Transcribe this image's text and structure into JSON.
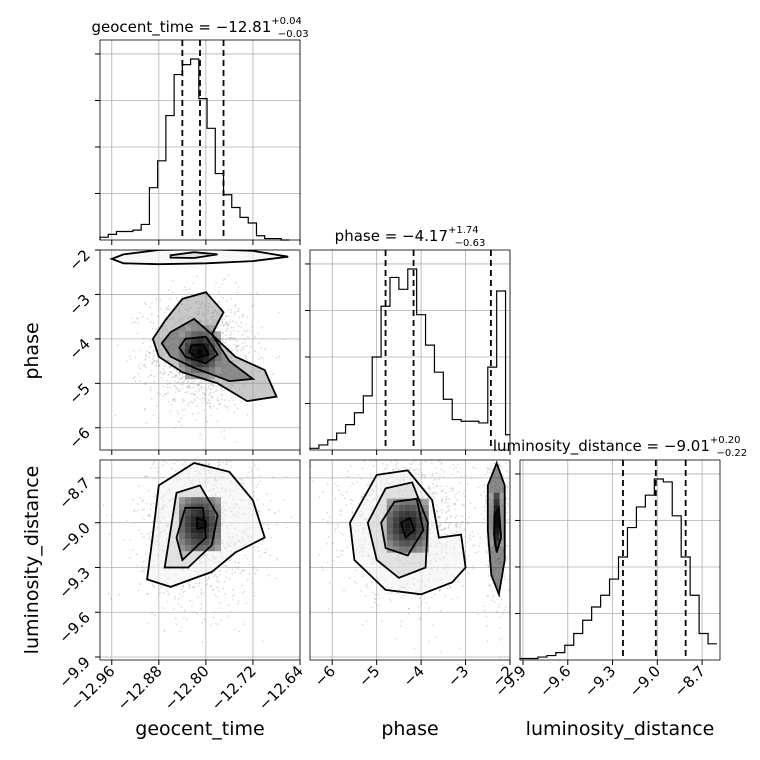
{
  "chart_data": {
    "type": "corner",
    "parameters": [
      "geocent_time",
      "phase",
      "luminosity_distance"
    ],
    "titles": [
      {
        "name": "geocent_time",
        "median": "−12.81",
        "plus": "+0.04",
        "minus": "−0.03"
      },
      {
        "name": "phase",
        "median": "−4.17",
        "plus": "+1.74",
        "minus": "−0.63"
      },
      {
        "name": "luminosity_distance",
        "median": "−9.01",
        "plus": "+0.20",
        "minus": "−0.22"
      }
    ],
    "axes": {
      "geocent_time": {
        "range": [
          -12.98,
          -12.64
        ],
        "ticks": [
          -12.96,
          -12.88,
          -12.8,
          -12.72,
          -12.64
        ],
        "tick_labels": [
          "−12.96",
          "−12.88",
          "−12.80",
          "−12.72",
          "−12.64"
        ]
      },
      "phase": {
        "range": [
          -6.5,
          -2.0
        ],
        "ticks": [
          -6,
          -5,
          -4,
          -3,
          -2
        ],
        "tick_labels": [
          "−6",
          "−5",
          "−4",
          "−3",
          "−2"
        ]
      },
      "luminosity_distance": {
        "range": [
          -9.92,
          -8.58
        ],
        "ticks": [
          -9.9,
          -9.6,
          -9.3,
          -9.0,
          -8.7
        ],
        "tick_labels": [
          "−9.9",
          "−9.6",
          "−9.3",
          "−9.0",
          "−8.7"
        ]
      }
    },
    "quantiles": {
      "geocent_time": [
        -12.84,
        -12.81,
        -12.77
      ],
      "phase": [
        -4.8,
        -4.17,
        -2.43
      ],
      "luminosity_distance": [
        -9.23,
        -9.01,
        -8.81
      ]
    },
    "histograms": {
      "geocent_time": {
        "edges": [
          -12.98,
          -12.966,
          -12.952,
          -12.938,
          -12.924,
          -12.91,
          -12.896,
          -12.882,
          -12.868,
          -12.854,
          -12.84,
          -12.826,
          -12.812,
          -12.798,
          -12.784,
          -12.77,
          -12.756,
          -12.742,
          -12.728,
          -12.714,
          -12.7,
          -12.686,
          -12.672,
          -12.658
        ],
        "counts": [
          2,
          4,
          6,
          6,
          7,
          11,
          37,
          56,
          88,
          117,
          124,
          128,
          100,
          79,
          47,
          32,
          23,
          16,
          12,
          3,
          1,
          1,
          0
        ]
      },
      "phase": {
        "edges": [
          -6.5,
          -6.3,
          -6.1,
          -5.9,
          -5.7,
          -5.5,
          -5.3,
          -5.1,
          -4.9,
          -4.7,
          -4.5,
          -4.3,
          -4.1,
          -3.9,
          -3.7,
          -3.5,
          -3.3,
          -3.1,
          -2.9,
          -2.7,
          -2.5,
          -2.3,
          -2.1,
          -2.0
        ],
        "counts": [
          1,
          3,
          6,
          10,
          15,
          22,
          32,
          55,
          85,
          102,
          95,
          107,
          80,
          62,
          46,
          30,
          18,
          17,
          17,
          16,
          49,
          94,
          9
        ]
      },
      "luminosity_distance": {
        "edges": [
          -9.92,
          -9.86,
          -9.8,
          -9.74,
          -9.68,
          -9.62,
          -9.56,
          -9.5,
          -9.44,
          -9.38,
          -9.32,
          -9.26,
          -9.2,
          -9.14,
          -9.08,
          -9.02,
          -8.96,
          -8.9,
          -8.84,
          -8.78,
          -8.72,
          -8.66,
          -8.6
        ],
        "counts": [
          1,
          1,
          2,
          3,
          5,
          10,
          18,
          27,
          36,
          44,
          55,
          70,
          90,
          104,
          112,
          123,
          121,
          98,
          70,
          44,
          18,
          11
        ]
      }
    },
    "contours_2d": [
      {
        "x": "geocent_time",
        "y": "phase",
        "levels": [
          [
            [
              -12.94,
              -2.1
            ],
            [
              -12.88,
              -2.0
            ],
            [
              -12.8,
              -1.98
            ],
            [
              -12.72,
              -2.02
            ],
            [
              -12.66,
              -2.15
            ],
            [
              -12.72,
              -2.25
            ],
            [
              -12.8,
              -2.3
            ],
            [
              -12.88,
              -2.32
            ],
            [
              -12.94,
              -2.3
            ],
            [
              -12.96,
              -2.2
            ]
          ],
          [
            [
              -12.86,
              -2.12
            ],
            [
              -12.82,
              -2.05
            ],
            [
              -12.78,
              -2.1
            ],
            [
              -12.82,
              -2.18
            ],
            [
              -12.86,
              -2.17
            ]
          ],
          [
            [
              -12.87,
              -3.6
            ],
            [
              -12.84,
              -3.1
            ],
            [
              -12.8,
              -2.95
            ],
            [
              -12.77,
              -3.4
            ],
            [
              -12.79,
              -3.9
            ],
            [
              -12.75,
              -4.4
            ],
            [
              -12.7,
              -4.7
            ],
            [
              -12.68,
              -5.3
            ],
            [
              -12.73,
              -5.4
            ],
            [
              -12.78,
              -5.0
            ],
            [
              -12.84,
              -4.75
            ],
            [
              -12.88,
              -4.4
            ],
            [
              -12.89,
              -4.0
            ]
          ],
          [
            [
              -12.86,
              -3.85
            ],
            [
              -12.82,
              -3.55
            ],
            [
              -12.79,
              -3.9
            ],
            [
              -12.76,
              -4.5
            ],
            [
              -12.72,
              -4.9
            ],
            [
              -12.76,
              -4.95
            ],
            [
              -12.82,
              -4.65
            ],
            [
              -12.86,
              -4.4
            ],
            [
              -12.875,
              -4.1
            ]
          ],
          [
            [
              -12.835,
              -4.0
            ],
            [
              -12.8,
              -3.95
            ],
            [
              -12.78,
              -4.35
            ],
            [
              -12.8,
              -4.55
            ],
            [
              -12.835,
              -4.4
            ],
            [
              -12.845,
              -4.2
            ]
          ],
          [
            [
              -12.825,
              -4.15
            ],
            [
              -12.805,
              -4.12
            ],
            [
              -12.795,
              -4.35
            ],
            [
              -12.815,
              -4.42
            ],
            [
              -12.828,
              -4.3
            ]
          ]
        ]
      },
      {
        "x": "geocent_time",
        "y": "luminosity_distance",
        "levels": [
          [
            [
              -12.88,
              -8.75
            ],
            [
              -12.82,
              -8.6
            ],
            [
              -12.76,
              -8.66
            ],
            [
              -12.72,
              -8.85
            ],
            [
              -12.7,
              -9.1
            ],
            [
              -12.75,
              -9.2
            ],
            [
              -12.79,
              -9.33
            ],
            [
              -12.86,
              -9.43
            ],
            [
              -12.9,
              -9.38
            ],
            [
              -12.89,
              -9.08
            ]
          ],
          [
            [
              -12.85,
              -8.8
            ],
            [
              -12.81,
              -8.75
            ],
            [
              -12.78,
              -8.95
            ],
            [
              -12.79,
              -9.15
            ],
            [
              -12.83,
              -9.3
            ],
            [
              -12.87,
              -9.3
            ],
            [
              -12.86,
              -9.05
            ]
          ],
          [
            [
              -12.835,
              -8.9
            ],
            [
              -12.805,
              -8.9
            ],
            [
              -12.8,
              -9.1
            ],
            [
              -12.84,
              -9.25
            ],
            [
              -12.85,
              -9.1
            ]
          ],
          [
            [
              -12.815,
              -8.97
            ],
            [
              -12.8,
              -8.99
            ],
            [
              -12.8,
              -9.03
            ],
            [
              -12.815,
              -9.04
            ]
          ]
        ]
      },
      {
        "x": "phase",
        "y": "luminosity_distance",
        "levels": [
          [
            [
              -5.6,
              -9.0
            ],
            [
              -5.0,
              -8.68
            ],
            [
              -4.3,
              -8.65
            ],
            [
              -3.75,
              -8.85
            ],
            [
              -3.6,
              -9.1
            ],
            [
              -3.1,
              -9.08
            ],
            [
              -3.0,
              -9.3
            ],
            [
              -3.3,
              -9.4
            ],
            [
              -4.0,
              -9.48
            ],
            [
              -4.8,
              -9.45
            ],
            [
              -5.5,
              -9.25
            ]
          ],
          [
            [
              -5.2,
              -9.0
            ],
            [
              -4.8,
              -8.77
            ],
            [
              -4.2,
              -8.73
            ],
            [
              -3.85,
              -9.0
            ],
            [
              -3.9,
              -9.3
            ],
            [
              -4.5,
              -9.37
            ],
            [
              -5.0,
              -9.25
            ]
          ],
          [
            [
              -4.9,
              -9.0
            ],
            [
              -4.6,
              -8.86
            ],
            [
              -4.1,
              -8.84
            ],
            [
              -3.95,
              -9.05
            ],
            [
              -4.3,
              -9.22
            ],
            [
              -4.8,
              -9.17
            ]
          ],
          [
            [
              -4.45,
              -9.0
            ],
            [
              -4.25,
              -8.97
            ],
            [
              -4.15,
              -9.05
            ],
            [
              -4.35,
              -9.1
            ]
          ],
          [
            [
              -2.5,
              -8.75
            ],
            [
              -2.3,
              -8.6
            ],
            [
              -2.12,
              -8.75
            ],
            [
              -2.12,
              -9.25
            ],
            [
              -2.25,
              -9.48
            ],
            [
              -2.42,
              -9.35
            ],
            [
              -2.5,
              -9.05
            ]
          ],
          [
            [
              -2.35,
              -8.95
            ],
            [
              -2.25,
              -8.9
            ],
            [
              -2.2,
              -9.1
            ],
            [
              -2.3,
              -9.2
            ],
            [
              -2.36,
              -9.08
            ]
          ]
        ]
      }
    ],
    "density_cores": [
      {
        "x": "geocent_time",
        "y": "phase",
        "cx": -12.81,
        "cy": -4.3,
        "sx": 0.028,
        "sy": 0.42
      },
      {
        "x": "geocent_time",
        "y": "luminosity_distance",
        "cx": -12.81,
        "cy": -9.01,
        "sx": 0.032,
        "sy": 0.17
      },
      {
        "x": "phase",
        "y": "luminosity_distance",
        "cx": -4.3,
        "cy": -9.02,
        "sx": 0.45,
        "sy": 0.15
      },
      {
        "x": "phase",
        "y": "luminosity_distance",
        "cx": -2.3,
        "cy": -8.98,
        "sx": 0.1,
        "sy": 0.2
      }
    ]
  }
}
